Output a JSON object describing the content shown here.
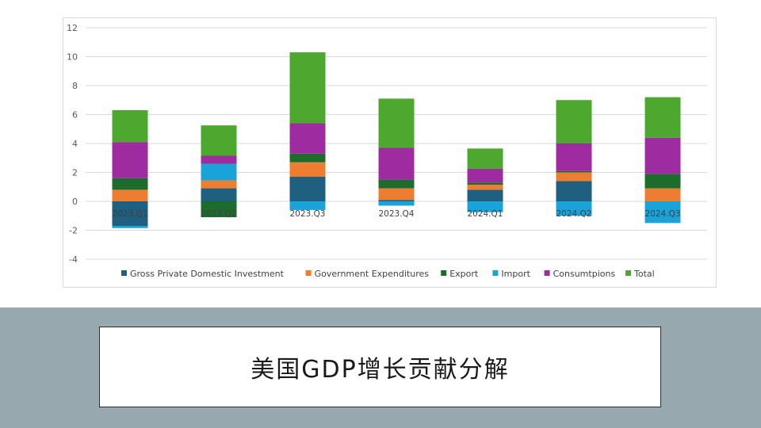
{
  "slide": {
    "title": "美国GDP增长贡献分解"
  },
  "chart_data": {
    "type": "bar",
    "stacked": true,
    "categories": [
      "2023.Q1",
      "2023.Q2",
      "2023.Q3",
      "2023.Q4",
      "2024.Q1",
      "2024.Q2",
      "2024.Q3"
    ],
    "ylim": [
      -4,
      12
    ],
    "yticks": [
      -4,
      -2,
      0,
      2,
      4,
      6,
      8,
      10,
      12
    ],
    "grid": true,
    "legend_position": "bottom",
    "series": [
      {
        "name": "Gross Private Domestic Investment",
        "color": "#1f5f7f",
        "values": [
          -1.7,
          0.9,
          1.7,
          0.1,
          0.8,
          1.4,
          0.0
        ]
      },
      {
        "name": "Government Expenditures",
        "color": "#ed7d31",
        "values": [
          0.8,
          0.55,
          1.0,
          0.8,
          0.35,
          0.6,
          0.9
        ]
      },
      {
        "name": "Export",
        "color": "#1e6b2e",
        "values": [
          0.8,
          -1.1,
          0.6,
          0.6,
          0.15,
          0.1,
          1.0
        ]
      },
      {
        "name": "Import",
        "color": "#1aa3d8",
        "values": [
          -0.15,
          1.15,
          -0.6,
          -0.3,
          -0.75,
          -1.0,
          -1.5
        ]
      },
      {
        "name": "Consumtpions",
        "color": "#9e2ca0",
        "values": [
          2.5,
          0.55,
          2.1,
          2.2,
          0.95,
          1.9,
          2.5
        ]
      },
      {
        "name": "Total",
        "color": "#4ea72e",
        "values": [
          2.2,
          2.1,
          4.9,
          3.4,
          1.4,
          3.0,
          2.8
        ]
      }
    ]
  }
}
